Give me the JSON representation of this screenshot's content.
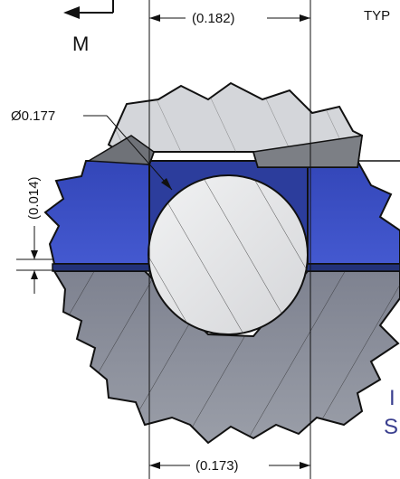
{
  "labels": {
    "typ": "TYP",
    "view_letter": "M",
    "top_width": "(0.182)",
    "diameter": "Ø0.177",
    "depth": "(0.014)",
    "bottom_width": "(0.173)",
    "cut_letter_1": "I",
    "cut_letter_2": "S"
  },
  "colors": {
    "top_part": "#d4d6da",
    "top_part_shadow": "#7c7f85",
    "middle_plate": "#3b4fc4",
    "middle_plate_dark": "#2a3a8a",
    "bottom_part": "#8a8e99",
    "ball": "#e6e7e9",
    "outline": "#111111"
  }
}
